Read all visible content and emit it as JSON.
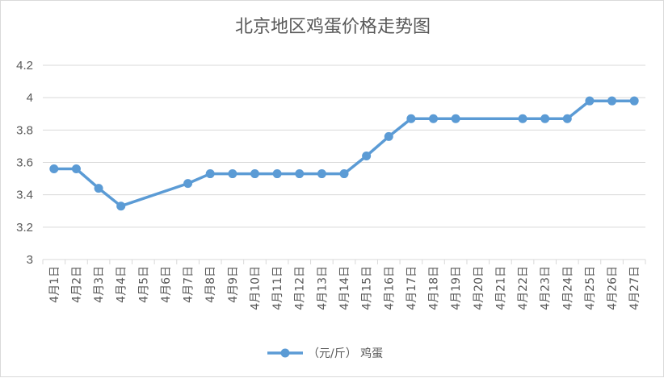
{
  "chart_data": {
    "type": "line",
    "title": "北京地区鸡蛋价格走势图",
    "categories": [
      "4月1日",
      "4月2日",
      "4月3日",
      "4月4日",
      "4月5日",
      "4月6日",
      "4月7日",
      "4月8日",
      "4月9日",
      "4月10日",
      "4月11日",
      "4月12日",
      "4月13日",
      "4月14日",
      "4月15日",
      "4月16日",
      "4月17日",
      "4月18日",
      "4月19日",
      "4月20日",
      "4月21日",
      "4月22日",
      "4月23日",
      "4月24日",
      "4月25日",
      "4月26日",
      "4月27日"
    ],
    "series": [
      {
        "name": "（元/斤） 鸡蛋",
        "color": "#5b9bd5",
        "values": [
          3.56,
          3.56,
          3.44,
          3.33,
          null,
          null,
          3.47,
          3.53,
          3.53,
          3.53,
          3.53,
          3.53,
          3.53,
          3.53,
          3.64,
          3.76,
          3.87,
          3.87,
          3.87,
          null,
          null,
          3.87,
          3.87,
          3.87,
          3.98,
          3.98,
          3.98
        ]
      }
    ],
    "ylim": [
      3,
      4.2
    ],
    "yticks": [
      "3",
      "3.2",
      "3.4",
      "3.6",
      "3.8",
      "4",
      "4.2"
    ],
    "grid": true,
    "legend": "bottom"
  }
}
